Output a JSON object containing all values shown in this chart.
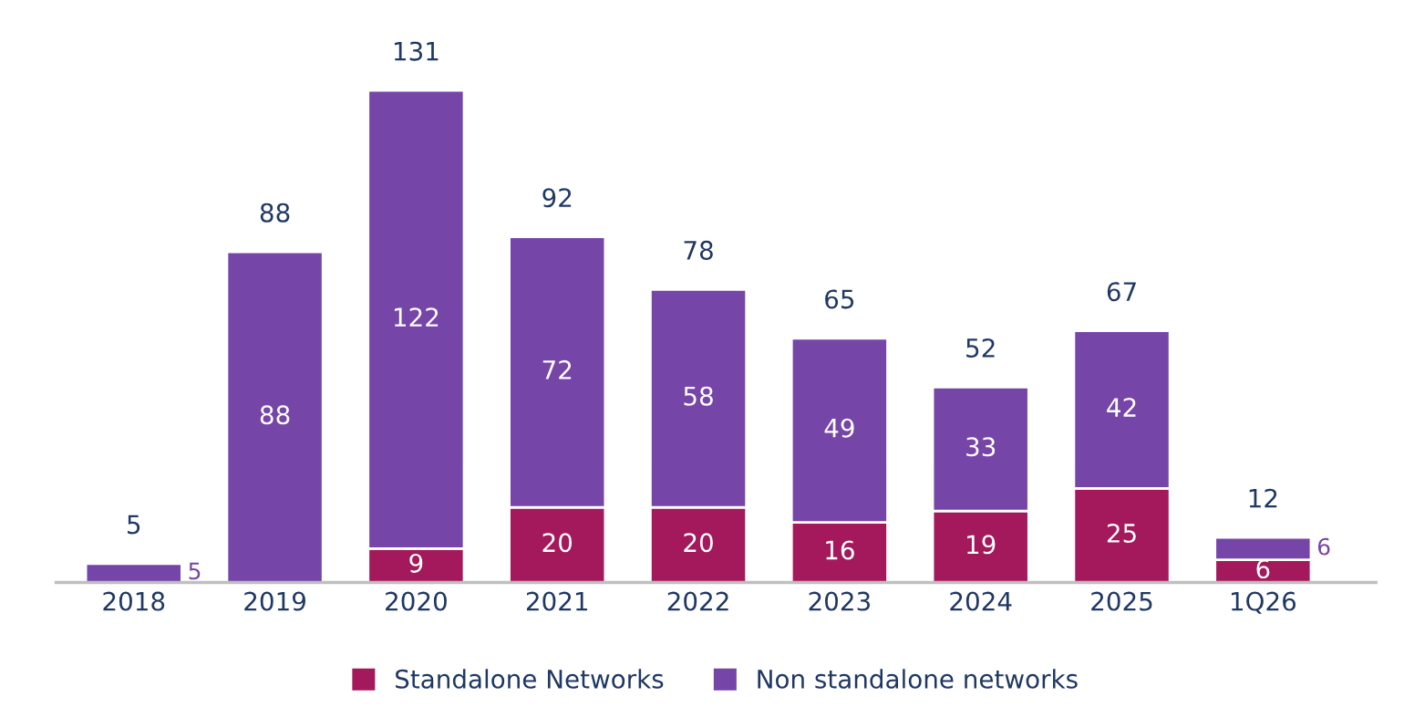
{
  "chart_data": {
    "type": "bar",
    "stacked": true,
    "data_labels": true,
    "legend": "bottom",
    "grid": false,
    "categories": [
      "2018",
      "2019",
      "2020",
      "2021",
      "2022",
      "2023",
      "2024",
      "2025",
      "1Q26"
    ],
    "series": [
      {
        "name": "Standalone Networks",
        "color": "#a3195b",
        "values": [
          null,
          null,
          9,
          20,
          20,
          16,
          19,
          25,
          6
        ]
      },
      {
        "name": "Non standalone networks",
        "color": "#7645a8",
        "values": [
          5,
          88,
          122,
          72,
          58,
          49,
          33,
          42,
          6
        ]
      }
    ],
    "totals": [
      "5",
      "88",
      "131",
      "92",
      "78",
      "65",
      "52",
      "67",
      "12"
    ]
  }
}
